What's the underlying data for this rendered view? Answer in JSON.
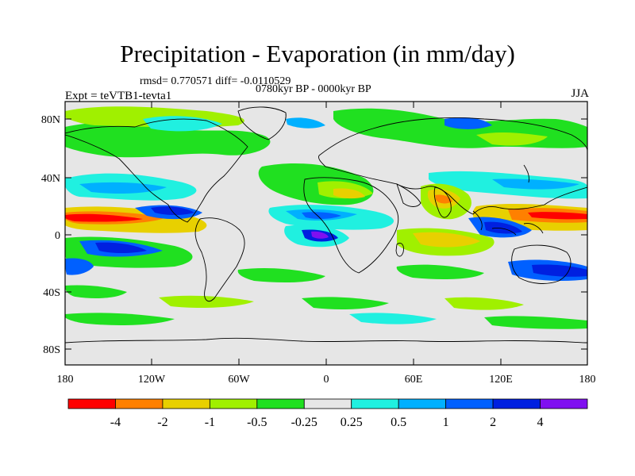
{
  "title": "Precipitation - Evaporation (in mm/day)",
  "stats_line": "rmsd= 0.770571 diff= -0.0110529",
  "period": "0780kyr BP - 0000kyr BP",
  "experiment": "Expt = teVTB1-tevta1",
  "season": "JJA",
  "lat_ticks": [
    "80N",
    "40N",
    "0",
    "40S",
    "80S"
  ],
  "lon_ticks": [
    "180",
    "120W",
    "60W",
    "0",
    "60E",
    "120E",
    "180"
  ],
  "colorbar": {
    "colors": [
      "#ff0000",
      "#ff8000",
      "#e8d000",
      "#a0f000",
      "#20e020",
      "#e6e6e6",
      "#20f0e0",
      "#00b0ff",
      "#0060ff",
      "#0020e0",
      "#8010f0"
    ],
    "labels": [
      "-4",
      "-2",
      "-1",
      "-0.5",
      "-0.25",
      "0.25",
      "0.5",
      "1",
      "2",
      "4"
    ]
  },
  "colors": {
    "ocean_bg": "#e6e6e6",
    "coast": "#000000"
  }
}
